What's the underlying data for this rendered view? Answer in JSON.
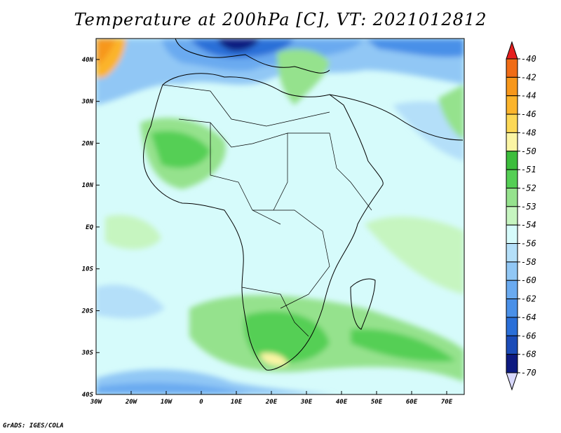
{
  "title": "Temperature at 200hPa [C], VT: 2021012812",
  "credit": "GrADS: IGES/COLA",
  "map": {
    "lon_range": [
      -30,
      75
    ],
    "lat_range": [
      -40,
      45
    ],
    "lon_ticks": [
      {
        "value": -30,
        "label": "30W"
      },
      {
        "value": -20,
        "label": "20W"
      },
      {
        "value": -10,
        "label": "10W"
      },
      {
        "value": 0,
        "label": "0"
      },
      {
        "value": 10,
        "label": "10E"
      },
      {
        "value": 20,
        "label": "20E"
      },
      {
        "value": 30,
        "label": "30E"
      },
      {
        "value": 40,
        "label": "40E"
      },
      {
        "value": 50,
        "label": "50E"
      },
      {
        "value": 60,
        "label": "60E"
      },
      {
        "value": 70,
        "label": "70E"
      }
    ],
    "lat_ticks": [
      {
        "value": 40,
        "label": "40N"
      },
      {
        "value": 30,
        "label": "30N"
      },
      {
        "value": 20,
        "label": "20N"
      },
      {
        "value": 10,
        "label": "10N"
      },
      {
        "value": 0,
        "label": "EQ"
      },
      {
        "value": -10,
        "label": "10S"
      },
      {
        "value": -20,
        "label": "20S"
      },
      {
        "value": -30,
        "label": "30S"
      },
      {
        "value": -40,
        "label": "40S"
      }
    ],
    "background_color": "#d6fbfb"
  },
  "colorbar": {
    "top_arrow_color": "#e51f1f",
    "bottom_arrow_color": "#d8d8fb",
    "levels": [
      {
        "label": "-40",
        "color": "#e8421e"
      },
      {
        "label": "-42",
        "color": "#f06c16"
      },
      {
        "label": "-44",
        "color": "#f7971b"
      },
      {
        "label": "-46",
        "color": "#fbb42c"
      },
      {
        "label": "-48",
        "color": "#fcd857"
      },
      {
        "label": "-50",
        "color": "#fbf5a4"
      },
      {
        "label": "-51",
        "color": "#3cbd3c"
      },
      {
        "label": "-52",
        "color": "#55cf55"
      },
      {
        "label": "-53",
        "color": "#95e28d"
      },
      {
        "label": "-54",
        "color": "#c6f5c0"
      },
      {
        "label": "-56",
        "color": "#d6fbfb"
      },
      {
        "label": "-58",
        "color": "#b4dff9"
      },
      {
        "label": "-60",
        "color": "#91c7f5"
      },
      {
        "label": "-62",
        "color": "#6aaaf0"
      },
      {
        "label": "-64",
        "color": "#4a90e8"
      },
      {
        "label": "-66",
        "color": "#2a6fd8"
      },
      {
        "label": "-68",
        "color": "#1b4cb8"
      },
      {
        "label": "-70",
        "color": "#0d1a80"
      }
    ]
  }
}
